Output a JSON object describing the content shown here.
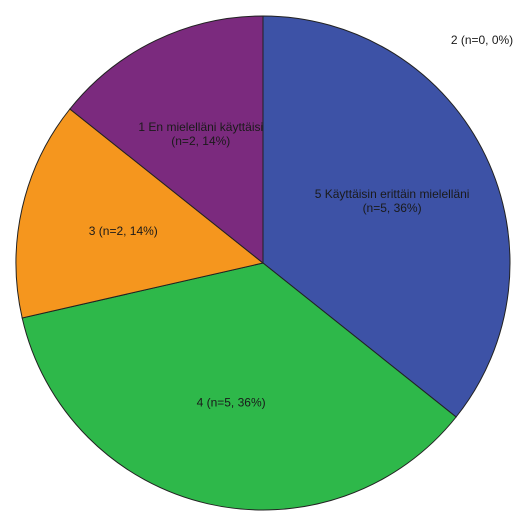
{
  "chart_data": {
    "type": "pie",
    "title": "",
    "slices": [
      {
        "category": "5 Käyttäisin erittäin mielelläni",
        "n": 5,
        "percent": 36,
        "label_lines": [
          "5 Käyttäisin erittäin mielelläni",
          "(n=5, 36%)"
        ],
        "color": "#3d52a6"
      },
      {
        "category": "4",
        "n": 5,
        "percent": 36,
        "label_lines": [
          "4 (n=5, 36%)"
        ],
        "color": "#2eb84a"
      },
      {
        "category": "3",
        "n": 2,
        "percent": 14,
        "label_lines": [
          "3 (n=2, 14%)"
        ],
        "color": "#f5961e"
      },
      {
        "category": "1 En mielelläni käyttäisi",
        "n": 2,
        "percent": 14,
        "label_lines": [
          "1 En mielelläni käyttäisi",
          "(n=2, 14%)"
        ],
        "color": "#7b2a7e"
      },
      {
        "category": "2",
        "n": 0,
        "percent": 0,
        "label_lines": [
          "2 (n=0, 0%)"
        ],
        "color": "#cccccc"
      }
    ],
    "start_angle_deg": 0,
    "direction": "clockwise"
  }
}
